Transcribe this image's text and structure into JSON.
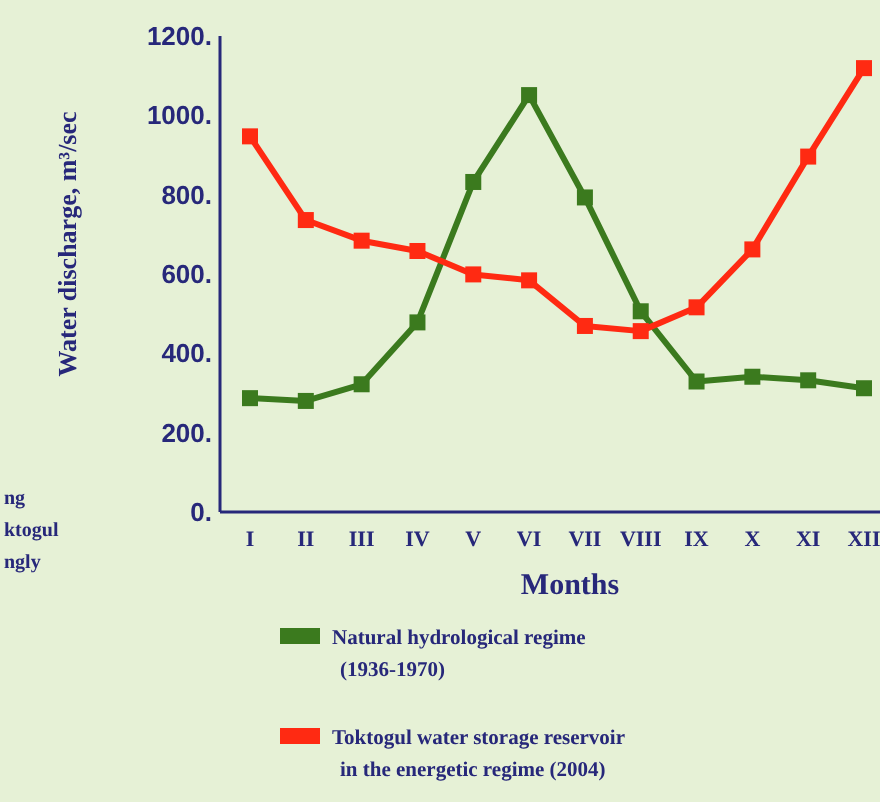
{
  "chart_data": {
    "type": "line",
    "xlabel": "Months",
    "ylabel": "Water discharge, m³/sec",
    "categories": [
      "I",
      "II",
      "III",
      "IV",
      "V",
      "VI",
      "VII",
      "VIII",
      "IX",
      "X",
      "XI",
      "XII"
    ],
    "series": [
      {
        "name": "Natural hydrological regime (1936-1970)",
        "color": "#3b7a1e",
        "values": [
          287,
          280,
          322,
          478,
          832,
          1051,
          793,
          506,
          329,
          341,
          332,
          312
        ]
      },
      {
        "name": "Toktogul water storage reservoir in the energetic regime (2004)",
        "color": "#ff2a12",
        "values": [
          947,
          736,
          684,
          658,
          599,
          584,
          469,
          456,
          516,
          662,
          896,
          1119
        ]
      }
    ],
    "ylim": [
      0,
      1200
    ],
    "yticks": [
      {
        "value": 0,
        "label": "0."
      },
      {
        "value": 200,
        "label": "200."
      },
      {
        "value": 400,
        "label": "400."
      },
      {
        "value": 600,
        "label": "600."
      },
      {
        "value": 800,
        "label": "800."
      },
      {
        "value": 1000,
        "label": "1000."
      },
      {
        "value": 1200,
        "label": "1200."
      }
    ],
    "marker": "square",
    "line_style": "solid",
    "grid": false,
    "legend": "bottom",
    "annotations": [
      "ng",
      "ktogul",
      "ngly"
    ]
  }
}
